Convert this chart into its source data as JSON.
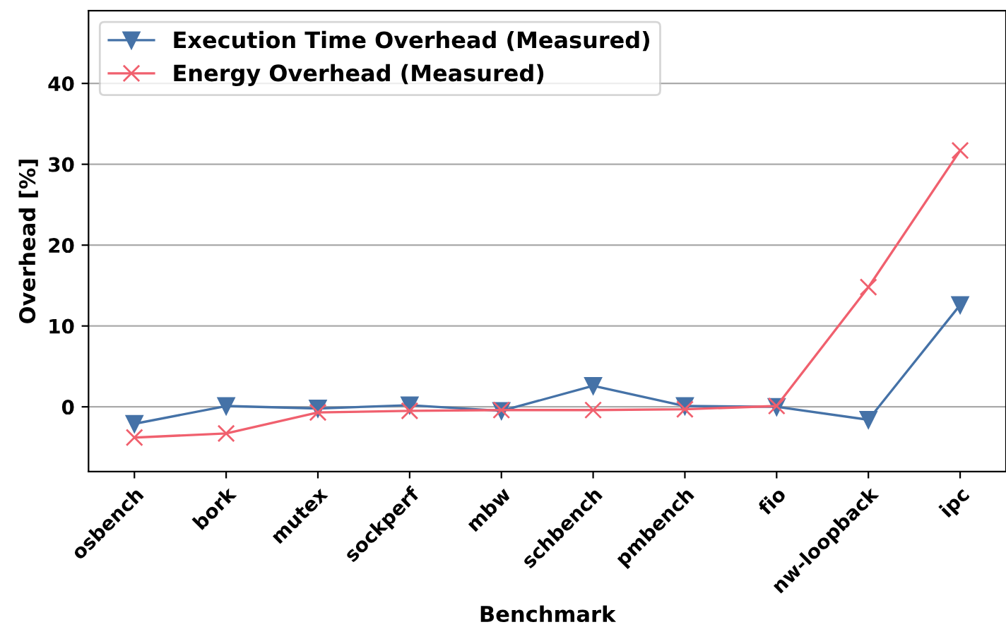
{
  "chart_data": {
    "type": "line",
    "xlabel": "Benchmark",
    "ylabel": "Overhead [%]",
    "categories": [
      "osbench",
      "bork",
      "mutex",
      "sockperf",
      "mbw",
      "schbench",
      "pmbench",
      "fio",
      "nw-loopback",
      "ipc"
    ],
    "series": [
      {
        "name": "Execution Time Overhead (Measured)",
        "color": "#4572a7",
        "marker": "triangle",
        "values": [
          -2.1,
          0.1,
          -0.2,
          0.2,
          -0.5,
          2.6,
          0.1,
          0.0,
          -1.6,
          12.6
        ]
      },
      {
        "name": "Energy Overhead (Measured)",
        "color": "#f0606e",
        "marker": "cross",
        "values": [
          -3.8,
          -3.3,
          -0.7,
          -0.5,
          -0.4,
          -0.4,
          -0.3,
          0.1,
          14.8,
          31.7
        ]
      }
    ],
    "ylim": [
      -8,
      49
    ],
    "yticks": [
      0,
      10,
      20,
      30,
      40
    ],
    "grid": "y",
    "legend": "top left",
    "line_style": "solid"
  }
}
